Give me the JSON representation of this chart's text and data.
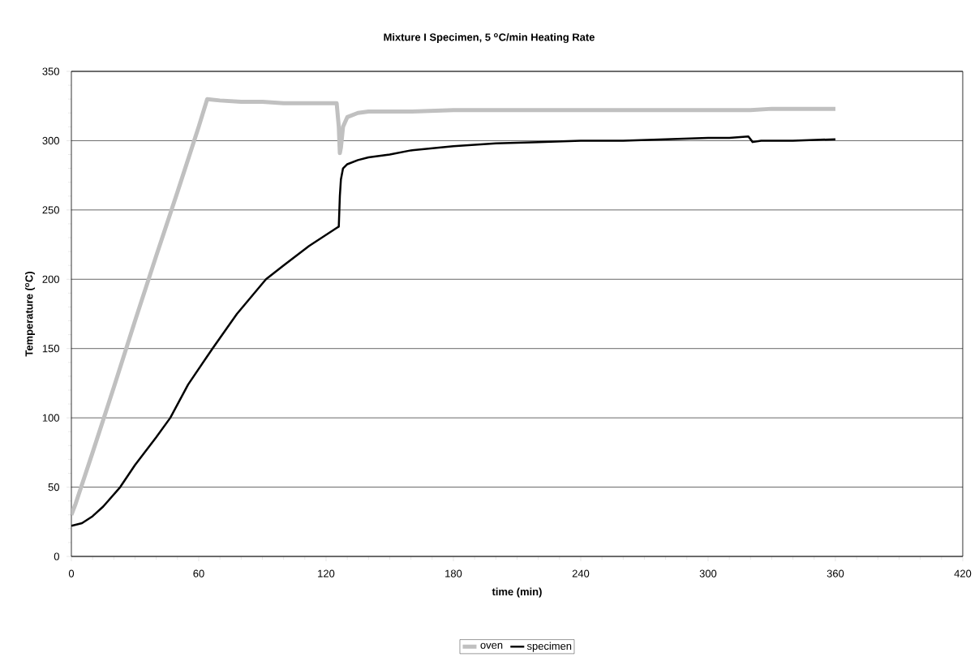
{
  "chart_data": {
    "type": "line",
    "title": "Mixture I Specimen, 5 $^{o}$C/min Heating Rate",
    "xlabel": "time (min)",
    "ylabel": "Temperature ($^{o}$C)",
    "xlim": [
      0,
      420
    ],
    "xticks": [
      0,
      60,
      120,
      180,
      240,
      300,
      360,
      420
    ],
    "ylim": [
      0,
      350
    ],
    "yticks": [
      0,
      50,
      100,
      150,
      200,
      250,
      300,
      350
    ],
    "grid": "y",
    "legend": "bottom",
    "marker": "none",
    "line_style": "solid",
    "series": [
      {
        "name": "oven",
        "color": "#c0c0c0",
        "x": [
          0,
          2,
          10,
          20,
          30,
          40,
          50,
          60,
          64,
          70,
          80,
          90,
          100,
          110,
          120,
          125,
          126,
          126.5,
          127,
          128,
          130,
          135,
          140,
          150,
          160,
          180,
          200,
          240,
          280,
          320,
          330,
          360
        ],
        "values": [
          30,
          38,
          75,
          122,
          170,
          217,
          263,
          310,
          330,
          329,
          328,
          328,
          327,
          327,
          327,
          327,
          310,
          291,
          295,
          310,
          317,
          320,
          321,
          321,
          321,
          322,
          322,
          322,
          322,
          322,
          323,
          323
        ]
      },
      {
        "name": "specimen",
        "color": "#000000",
        "x": [
          0,
          5,
          10,
          15,
          23,
          30,
          40,
          46.6,
          55,
          66.5,
          78,
          91.7,
          100,
          112,
          125,
          126,
          126.5,
          127,
          128,
          130,
          135,
          140,
          150,
          160,
          180,
          200,
          220,
          240,
          260,
          280,
          300,
          310,
          319,
          321,
          325,
          340,
          360
        ],
        "values": [
          22,
          24,
          29,
          36,
          50,
          66,
          86,
          100,
          124,
          150,
          175,
          200,
          210,
          224,
          237,
          238,
          260,
          272,
          280,
          283,
          286,
          288,
          290,
          293,
          296,
          298,
          299,
          300,
          300,
          301,
          302,
          302,
          303,
          299,
          300,
          300,
          301
        ]
      }
    ]
  }
}
